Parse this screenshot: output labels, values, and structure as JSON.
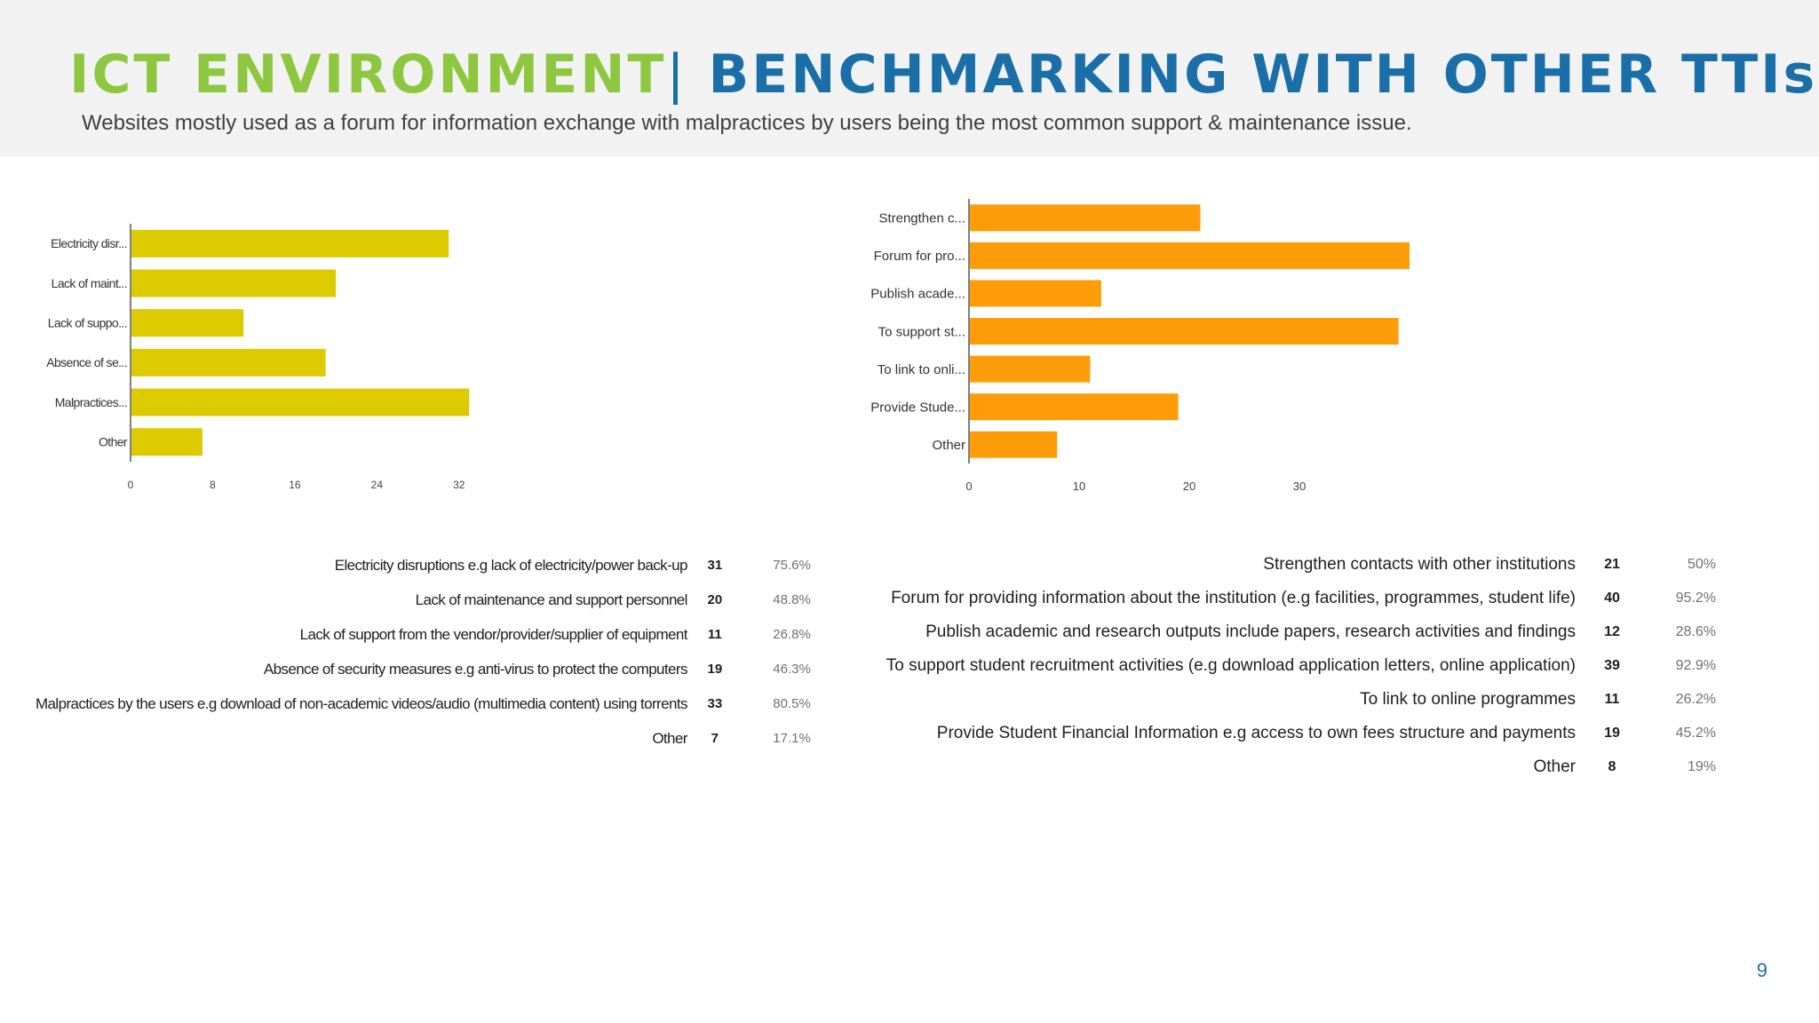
{
  "header": {
    "title_part1": "ICT ENVIRONMENT",
    "title_separator": "|",
    "title_part2": "BENCHMARKING WITH OTHER TTIs",
    "subtitle": "Websites mostly used as a forum for information exchange with malpractices by users being the most common support & maintenance issue."
  },
  "colors": {
    "left_bar": "#ddca00",
    "right_bar": "#ff9c0a",
    "title_green": "#8dc63f",
    "title_blue": "#1a6fa8"
  },
  "chart_data": [
    {
      "type": "bar",
      "orientation": "horizontal",
      "title": "",
      "categories": [
        "Electricity disr...",
        "Lack of maint...",
        "Lack of suppo...",
        "Absence of se...",
        "Malpractices...",
        "Other"
      ],
      "values": [
        31,
        20,
        11,
        19,
        33,
        7
      ],
      "xticks": [
        0,
        8,
        16,
        24,
        32
      ],
      "xlim": [
        0,
        36
      ],
      "xlabel": "",
      "ylabel": ""
    },
    {
      "type": "bar",
      "orientation": "horizontal",
      "title": "",
      "categories": [
        "Strengthen c...",
        "Forum for pro...",
        "Publish acade...",
        "To support st...",
        "To link to onli...",
        "Provide Stude...",
        "Other"
      ],
      "values": [
        21,
        40,
        12,
        39,
        11,
        19,
        8
      ],
      "xticks": [
        0,
        10,
        20,
        30
      ],
      "xlim": [
        0,
        50
      ],
      "xlabel": "",
      "ylabel": ""
    }
  ],
  "left_table": [
    {
      "label": "Electricity disruptions e.g lack of electricity/power back-up",
      "count": "31",
      "percent": "75.6%"
    },
    {
      "label": "Lack of maintenance and support personnel",
      "count": "20",
      "percent": "48.8%"
    },
    {
      "label": "Lack of support from the vendor/provider/supplier of equipment",
      "count": "11",
      "percent": "26.8%"
    },
    {
      "label": "Absence of security measures e.g anti-virus to protect the computers",
      "count": "19",
      "percent": "46.3%"
    },
    {
      "label": "Malpractices by the users e.g download of non-academic videos/audio (multimedia content) using torrents",
      "count": "33",
      "percent": "80.5%"
    },
    {
      "label": "Other",
      "count": "7",
      "percent": "17.1%"
    }
  ],
  "right_table": [
    {
      "label": "Strengthen contacts with other institutions",
      "count": "21",
      "percent": "50%"
    },
    {
      "label": "Forum for providing information about the institution (e.g facilities, programmes, student life)",
      "count": "40",
      "percent": "95.2%"
    },
    {
      "label": "Publish academic and research outputs include papers, research activities and findings",
      "count": "12",
      "percent": "28.6%"
    },
    {
      "label": "To support student recruitment activities (e.g download application letters, online application)",
      "count": "39",
      "percent": "92.9%"
    },
    {
      "label": "To link to online programmes",
      "count": "11",
      "percent": "26.2%"
    },
    {
      "label": "Provide Student Financial Information e.g access to own fees structure and payments",
      "count": "19",
      "percent": "45.2%"
    },
    {
      "label": "Other",
      "count": "8",
      "percent": "19%"
    }
  ],
  "page_number": "9"
}
